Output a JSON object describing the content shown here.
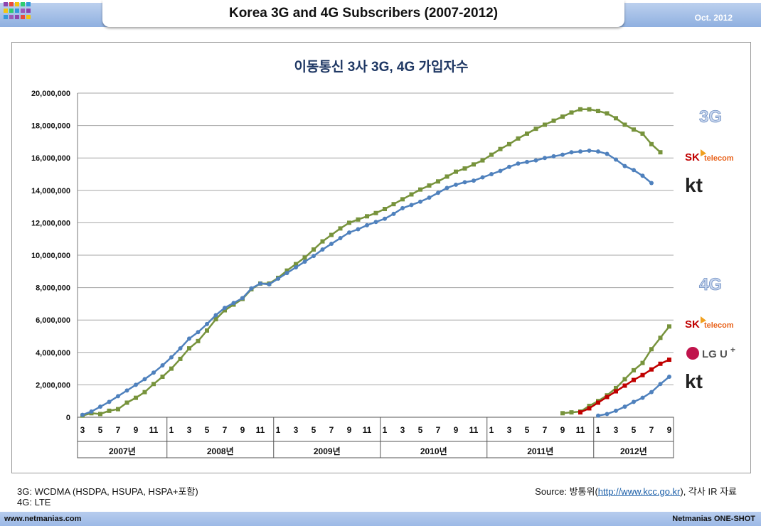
{
  "header": {
    "title": "Korea 3G and 4G Subscribers (2007-2012)",
    "date": "Oct. 2012"
  },
  "notes": {
    "line1": "3G: WCDMA (HSDPA, HSUPA, HSPA+포함)",
    "line2": "4G: LTE",
    "source_prefix": "Source: 방통위(",
    "source_link": "http://www.kcc.go.kr",
    "source_suffix": "), 각사 IR 자료"
  },
  "footer": {
    "left": "www.netmanias.com",
    "right": "Netmanias ONE-SHOT"
  },
  "colors": {
    "skt": "#77933c",
    "kt": "#4f81bd",
    "lgu": "#c00000"
  },
  "side_labels": {
    "g3": "3G",
    "g4": "4G",
    "skt": "telecom",
    "sk": "SK",
    "kt": "kt",
    "lgu": "LG U",
    "lgu_sup": "+"
  },
  "chart_data": {
    "type": "line",
    "title": "이동통신 3사 3G, 4G 가입자수",
    "ylim": [
      0,
      20000000
    ],
    "yticks": [
      "0",
      "2,000,000",
      "4,000,000",
      "6,000,000",
      "8,000,000",
      "10,000,000",
      "12,000,000",
      "14,000,000",
      "16,000,000",
      "18,000,000",
      "20,000,000"
    ],
    "month_labels": [
      "3",
      "5",
      "7",
      "9",
      "11",
      "1",
      "3",
      "5",
      "7",
      "9",
      "11",
      "1",
      "3",
      "5",
      "7",
      "9",
      "11",
      "1",
      "3",
      "5",
      "7",
      "9",
      "11",
      "1",
      "3",
      "5",
      "7",
      "9",
      "11",
      "1",
      "3",
      "5",
      "7",
      "9"
    ],
    "year_labels": [
      "2007년",
      "2008년",
      "2009년",
      "2010년",
      "2011년",
      "2012년"
    ],
    "x_start": "2007-03",
    "series": [
      {
        "group": "3G",
        "start": "2007-03",
        "values": [
          100000,
          250000,
          200000,
          400000,
          500000,
          900000,
          1200000,
          1550000,
          2050000,
          2500000,
          3000000,
          3600000,
          4250000,
          4700000,
          5350000,
          6050000,
          6600000,
          6950000,
          7300000,
          7900000,
          8250000,
          8250000,
          8600000,
          9050000,
          9450000,
          9850000,
          10350000,
          10850000,
          11250000,
          11650000,
          12000000,
          12200000,
          12400000,
          12600000,
          12850000,
          13150000,
          13450000,
          13750000,
          14050000,
          14300000,
          14550000,
          14850000,
          15150000,
          15350000,
          15600000,
          15850000,
          16200000,
          16550000,
          16850000,
          17200000,
          17500000,
          17800000,
          18050000,
          18300000,
          18550000,
          18800000,
          19000000,
          19000000,
          18900000,
          18750000,
          18450000,
          18050000,
          17750000,
          17500000,
          16850000,
          16350000
        ]
      },
      {
        "group": "3G",
        "start": "2007-03",
        "values": [
          150000,
          350000,
          650000,
          950000,
          1300000,
          1650000,
          2000000,
          2350000,
          2750000,
          3200000,
          3700000,
          4250000,
          4850000,
          5250000,
          5750000,
          6300000,
          6750000,
          7050000,
          7350000,
          7950000,
          8250000,
          8200000,
          8550000,
          8900000,
          9250000,
          9600000,
          9950000,
          10350000,
          10700000,
          11050000,
          11400000,
          11600000,
          11850000,
          12050000,
          12250000,
          12550000,
          12900000,
          13100000,
          13300000,
          13550000,
          13850000,
          14150000,
          14350000,
          14500000,
          14600000,
          14800000,
          15000000,
          15200000,
          15450000,
          15650000,
          15750000,
          15850000,
          16000000,
          16100000,
          16200000,
          16350000,
          16400000,
          16450000,
          16400000,
          16250000,
          15900000,
          15500000,
          15250000,
          14900000,
          14450000
        ]
      },
      {
        "group": "4G",
        "start": "2011-09",
        "values": [
          250000,
          300000,
          350000,
          700000,
          1000000,
          1350000,
          1800000,
          2350000,
          2900000,
          3350000,
          4200000,
          4900000,
          5600000
        ]
      },
      {
        "group": "4G",
        "start": "2011-11",
        "values": [
          300000,
          550000,
          900000,
          1250000,
          1600000,
          1950000,
          2300000,
          2600000,
          2950000,
          3300000,
          3550000
        ]
      },
      {
        "group": "4G",
        "start": "2012-01",
        "values": [
          100000,
          200000,
          400000,
          650000,
          950000,
          1200000,
          1550000,
          2050000,
          2500000
        ]
      }
    ]
  }
}
